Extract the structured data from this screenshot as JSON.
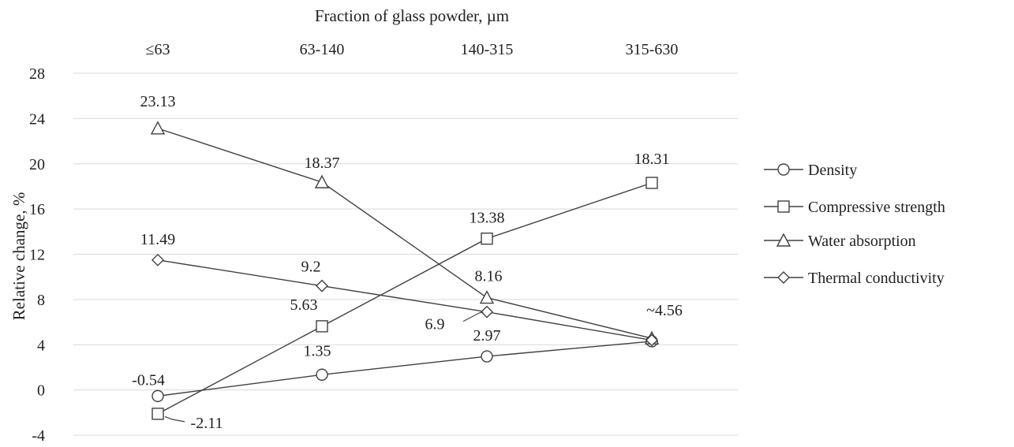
{
  "chart_data": {
    "type": "line",
    "title": "",
    "xlabel": "Fraction of glass powder, µm",
    "ylabel": "Relative change, %",
    "categories": [
      "≤63",
      "63-140",
      "140-315",
      "315-630"
    ],
    "x_axis_position": "top",
    "ylim": [
      -4,
      28
    ],
    "yticks": [
      -4,
      0,
      4,
      8,
      12,
      16,
      20,
      24,
      28
    ],
    "grid": true,
    "legend_position": "right",
    "series": [
      {
        "name": "Density",
        "marker": "circle",
        "values": [
          -0.54,
          1.35,
          2.97,
          4.3
        ],
        "labels": [
          "-0.54",
          "1.35",
          "2.97",
          ""
        ]
      },
      {
        "name": "Compressive strength",
        "marker": "square",
        "values": [
          -2.11,
          5.63,
          13.38,
          18.31
        ],
        "labels": [
          "-2.11",
          "5.63",
          "13.38",
          "18.31"
        ]
      },
      {
        "name": "Water absorption",
        "marker": "triangle",
        "values": [
          23.13,
          18.37,
          8.16,
          4.56
        ],
        "labels": [
          "23.13",
          "18.37",
          "8.16",
          "~4.56"
        ]
      },
      {
        "name": "Thermal conductivity",
        "marker": "diamond",
        "values": [
          11.49,
          9.2,
          6.9,
          4.4
        ],
        "labels": [
          "11.49",
          "9.2",
          "6.9",
          ""
        ]
      }
    ],
    "colors": {
      "line": "#404040",
      "grid": "#d9d9d9",
      "text": "#222222"
    }
  }
}
